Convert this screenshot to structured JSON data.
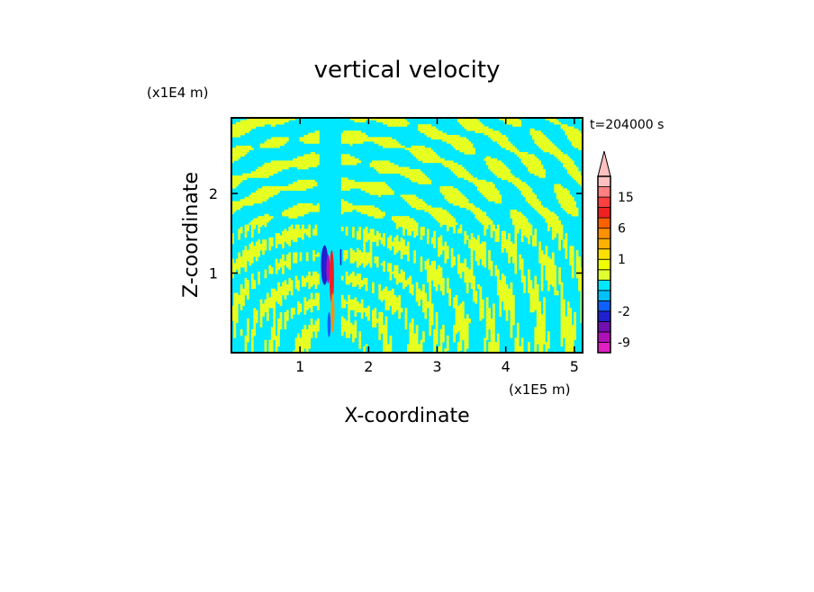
{
  "chart_data": {
    "type": "heatmap",
    "title": "vertical velocity",
    "xlabel": "X-coordinate",
    "ylabel": "Z-coordinate",
    "x_unit": "(x1E5 m)",
    "y_unit": "(x1E4 m)",
    "time_label": "t=204000 s",
    "xlim": [
      0,
      5.12
    ],
    "ylim": [
      0,
      2.95
    ],
    "x_ticks": [
      1,
      2,
      3,
      4,
      5
    ],
    "y_ticks": [
      1,
      2
    ],
    "colorbar": {
      "levels": [
        -12,
        -9,
        -6,
        -3,
        -2,
        -1,
        -0.5,
        0,
        0.5,
        1,
        2,
        3,
        6,
        9,
        12,
        15,
        18,
        21
      ],
      "colors": [
        "#e020c0",
        "#b010b8",
        "#7010b0",
        "#2020d0",
        "#1060ff",
        "#00c0ff",
        "#00e8ff",
        "#e0ff30",
        "#f0ff00",
        "#ffe000",
        "#ffb000",
        "#ff9000",
        "#ff6000",
        "#f02020",
        "#ff4040",
        "#ff8080",
        "#ffc0c0"
      ],
      "tick_labels": [
        "15",
        "6",
        "1",
        "-2",
        "-9"
      ],
      "tick_values": [
        15,
        6,
        1,
        -2,
        -9
      ],
      "extend": "max"
    },
    "field": {
      "background": "#00e8ff",
      "pattern": "#e6ff20",
      "plume_center_x": 1.45
    }
  }
}
